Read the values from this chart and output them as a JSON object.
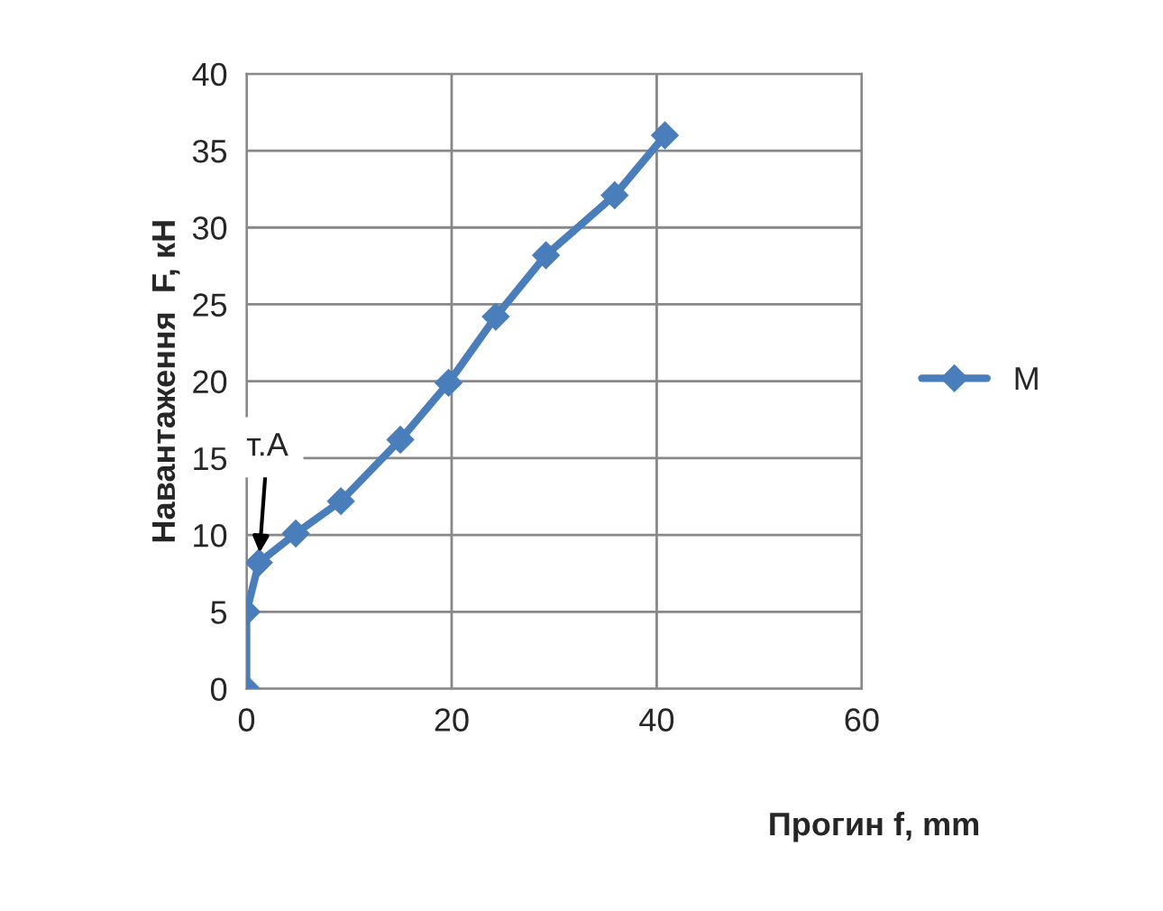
{
  "chart_data": {
    "type": "line",
    "xlabel": "Прогин f, mm",
    "ylabel": "Навантаження  F, кН",
    "x": [
      0,
      0,
      1.2,
      4.8,
      9.2,
      15,
      19.7,
      24.3,
      29.2,
      35.9,
      40.8
    ],
    "series": [
      {
        "name": "М",
        "color": "#4a7ebb",
        "values": [
          0,
          5,
          8.2,
          10.1,
          12.2,
          16.2,
          19.9,
          24.2,
          28.2,
          32.1,
          36
        ]
      }
    ],
    "xlim": [
      0,
      60
    ],
    "xticks": [
      0,
      20,
      40,
      60
    ],
    "ylim": [
      0,
      40
    ],
    "yticks": [
      0,
      5,
      10,
      15,
      20,
      25,
      30,
      35,
      40
    ],
    "grid": true,
    "legend": "right",
    "marker": "diamond",
    "line_style": "solid",
    "annotations": [
      {
        "text": "т.А",
        "x": 1.2,
        "y": 8.2
      }
    ]
  }
}
